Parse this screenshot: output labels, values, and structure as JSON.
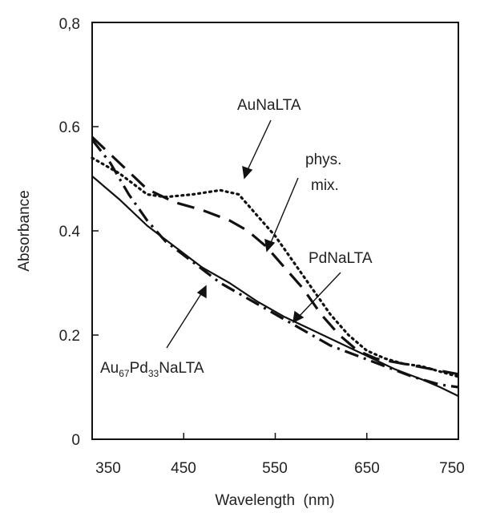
{
  "chart_data": {
    "type": "line",
    "title": "",
    "xlabel": "Wavelength  (nm)",
    "ylabel": "Absorbance",
    "xlim": [
      350,
      750
    ],
    "ylim": [
      0,
      0.8
    ],
    "x_ticks": [
      "350",
      "450",
      "550",
      "650",
      "750"
    ],
    "y_ticks": [
      "0",
      "0.2",
      "0.4",
      "0.6",
      "0,8"
    ],
    "grid": false,
    "series": [
      {
        "name": "AuNaLTA",
        "style": "dotted",
        "points": [
          [
            350,
            0.54
          ],
          [
            380,
            0.51
          ],
          [
            410,
            0.47
          ],
          [
            430,
            0.465
          ],
          [
            460,
            0.47
          ],
          [
            490,
            0.478
          ],
          [
            510,
            0.47
          ],
          [
            530,
            0.43
          ],
          [
            550,
            0.39
          ],
          [
            570,
            0.34
          ],
          [
            590,
            0.29
          ],
          [
            610,
            0.24
          ],
          [
            630,
            0.2
          ],
          [
            650,
            0.17
          ],
          [
            670,
            0.155
          ],
          [
            690,
            0.145
          ],
          [
            710,
            0.14
          ],
          [
            730,
            0.13
          ],
          [
            750,
            0.12
          ]
        ]
      },
      {
        "name": "phys. mix.",
        "style": "long-dash",
        "points": [
          [
            350,
            0.58
          ],
          [
            380,
            0.53
          ],
          [
            410,
            0.48
          ],
          [
            440,
            0.455
          ],
          [
            470,
            0.44
          ],
          [
            500,
            0.42
          ],
          [
            520,
            0.4
          ],
          [
            540,
            0.37
          ],
          [
            560,
            0.33
          ],
          [
            580,
            0.29
          ],
          [
            600,
            0.24
          ],
          [
            620,
            0.2
          ],
          [
            640,
            0.17
          ],
          [
            660,
            0.155
          ],
          [
            690,
            0.145
          ],
          [
            720,
            0.135
          ],
          [
            750,
            0.125
          ]
        ]
      },
      {
        "name": "PdNaLTA",
        "style": "dash-dot",
        "points": [
          [
            350,
            0.575
          ],
          [
            370,
            0.53
          ],
          [
            390,
            0.47
          ],
          [
            410,
            0.42
          ],
          [
            430,
            0.38
          ],
          [
            460,
            0.34
          ],
          [
            490,
            0.3
          ],
          [
            520,
            0.27
          ],
          [
            550,
            0.24
          ],
          [
            580,
            0.21
          ],
          [
            610,
            0.18
          ],
          [
            640,
            0.16
          ],
          [
            670,
            0.14
          ],
          [
            700,
            0.12
          ],
          [
            730,
            0.105
          ],
          [
            750,
            0.1
          ]
        ]
      },
      {
        "name": "Au67Pd33NaLTA",
        "style": "solid",
        "points": [
          [
            350,
            0.505
          ],
          [
            380,
            0.46
          ],
          [
            410,
            0.41
          ],
          [
            440,
            0.37
          ],
          [
            470,
            0.33
          ],
          [
            500,
            0.3
          ],
          [
            530,
            0.265
          ],
          [
            560,
            0.235
          ],
          [
            590,
            0.21
          ],
          [
            620,
            0.185
          ],
          [
            650,
            0.16
          ],
          [
            680,
            0.135
          ],
          [
            710,
            0.115
          ],
          [
            730,
            0.1
          ],
          [
            750,
            0.083
          ]
        ]
      }
    ],
    "annotations": [
      {
        "text": "AuNaLTA"
      },
      {
        "text": "phys."
      },
      {
        "text": "mix."
      },
      {
        "text": "PdNaLTA"
      },
      {
        "main": "Au",
        "sub1": "67",
        "mid": "Pd",
        "sub2": "33",
        "tail": "NaLTA"
      }
    ]
  }
}
